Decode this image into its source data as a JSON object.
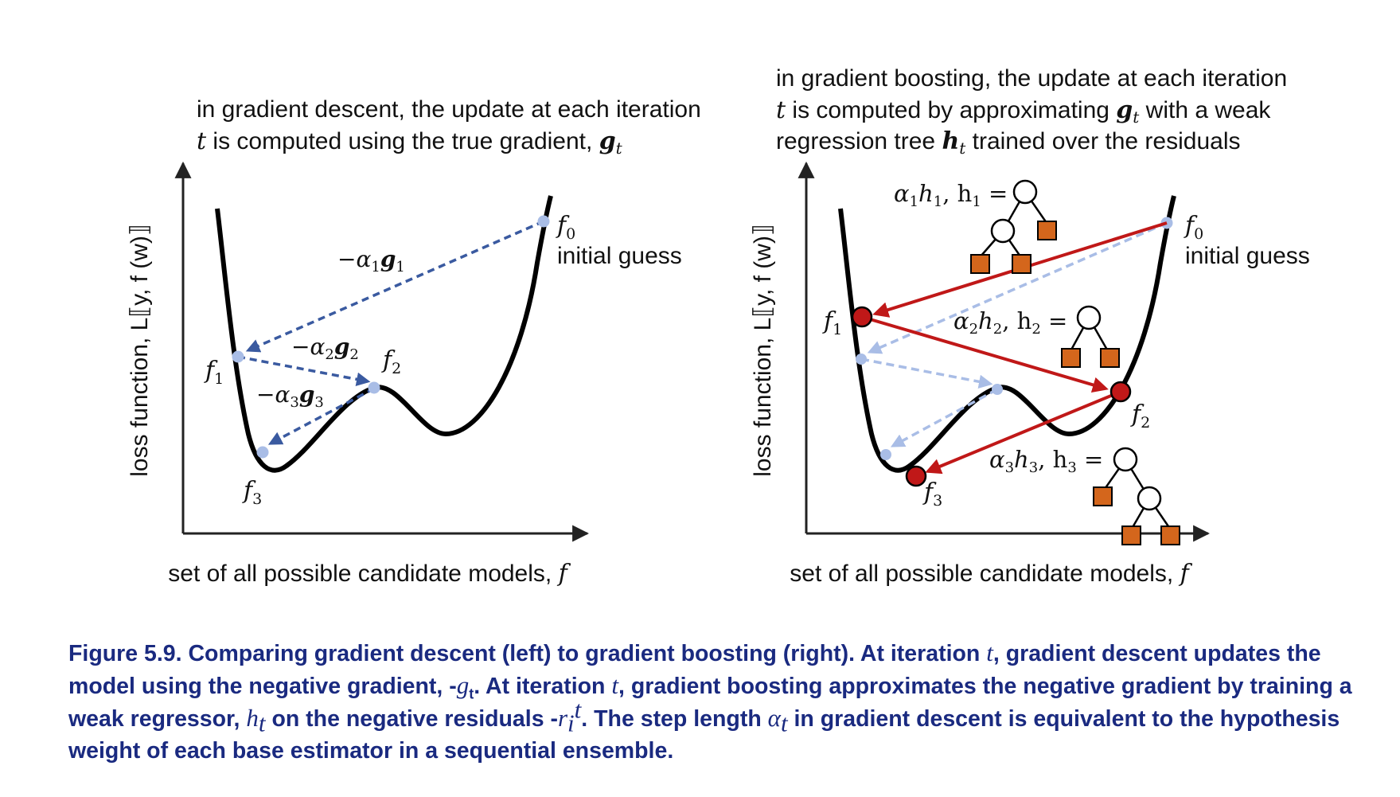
{
  "left_panel": {
    "title_line1": "in gradient descent, the update at each iteration",
    "title_line2_prefix": "t",
    "title_line2_text": " is computed using the true gradient, ",
    "title_line2_var": "g",
    "title_line2_sub": "t",
    "ylabel": "loss function, L⟦y, f (w)⟧",
    "xlabel": "set of all possible candidate models, ",
    "xlabel_var": "f",
    "f0_label": "f",
    "f0_sub": "0",
    "initial_guess": "initial guess",
    "f1_label": "f",
    "f1_sub": "1",
    "f2_label": "f",
    "f2_sub": "2",
    "f3_label": "f",
    "f3_sub": "3",
    "step1": "−α",
    "step1_sub": "1",
    "step1_var": "g",
    "step1_var_sub": "1",
    "step2": "−α",
    "step2_sub": "2",
    "step2_var": "g",
    "step2_var_sub": "2",
    "step3": "−α",
    "step3_sub": "3",
    "step3_var": "g",
    "step3_var_sub": "3"
  },
  "right_panel": {
    "title_line1": "in gradient boosting, the update at each iteration",
    "title_line2_prefix": "t",
    "title_line2_text": " is computed by approximating ",
    "title_line2_var": "g",
    "title_line2_sub": "t",
    "title_line2_suffix": " with a weak",
    "title_line3_text": "regression tree ",
    "title_line3_var": "h",
    "title_line3_sub": "t",
    "title_line3_suffix": " trained over the residuals",
    "ylabel": "loss function, L⟦y, f (w)⟧",
    "xlabel": "set of all possible candidate models, ",
    "xlabel_var": "f",
    "f0_label": "f",
    "f0_sub": "0",
    "initial_guess": "initial guess",
    "f1_label": "f",
    "f1_sub": "1",
    "f2_label": "f",
    "f2_sub": "2",
    "f3_label": "f",
    "f3_sub": "3",
    "tree1_alpha": "α",
    "tree1_h": "h",
    "tree1_sub": "1",
    "tree1_hname": "h",
    "tree1_hname_sub": "1",
    "tree2_alpha": "α",
    "tree2_h": "h",
    "tree2_sub": "2",
    "tree2_hname": "h",
    "tree2_hname_sub": "2",
    "tree3_alpha": "α",
    "tree3_h": "h",
    "tree3_sub": "3",
    "tree3_hname": "h",
    "tree3_hname_sub": "3"
  },
  "caption": {
    "part1": "Figure 5.9. Comparing gradient descent (left) to gradient boosting (right). At iteration ",
    "t1": "t",
    "part2": ", gradient descent updates the model using the negative gradient, -",
    "g": "g",
    "g_sub": "t",
    "part3": ". At iteration ",
    "t2": "t",
    "part4": ", gradient boosting approximates the negative gradient by training a weak regressor, ",
    "h": "h",
    "h_sub": "t",
    "part5": " on the negative residuals -",
    "r": "r",
    "r_sub": "i",
    "r_sup": "t",
    "part6": ". The step length ",
    "alpha": "α",
    "alpha_sub": "t",
    "part7": " in gradient descent is equivalent to the hypothesis weight of each base estimator in a sequential ensemble."
  },
  "colors": {
    "curve": "#000000",
    "descent_arrow": "#3a5aa0",
    "descent_point": "#a9bde6",
    "boost_arrow": "#c01818",
    "boost_point": "#c01818",
    "leaf": "#d4661c",
    "caption": "#1a2a80"
  }
}
